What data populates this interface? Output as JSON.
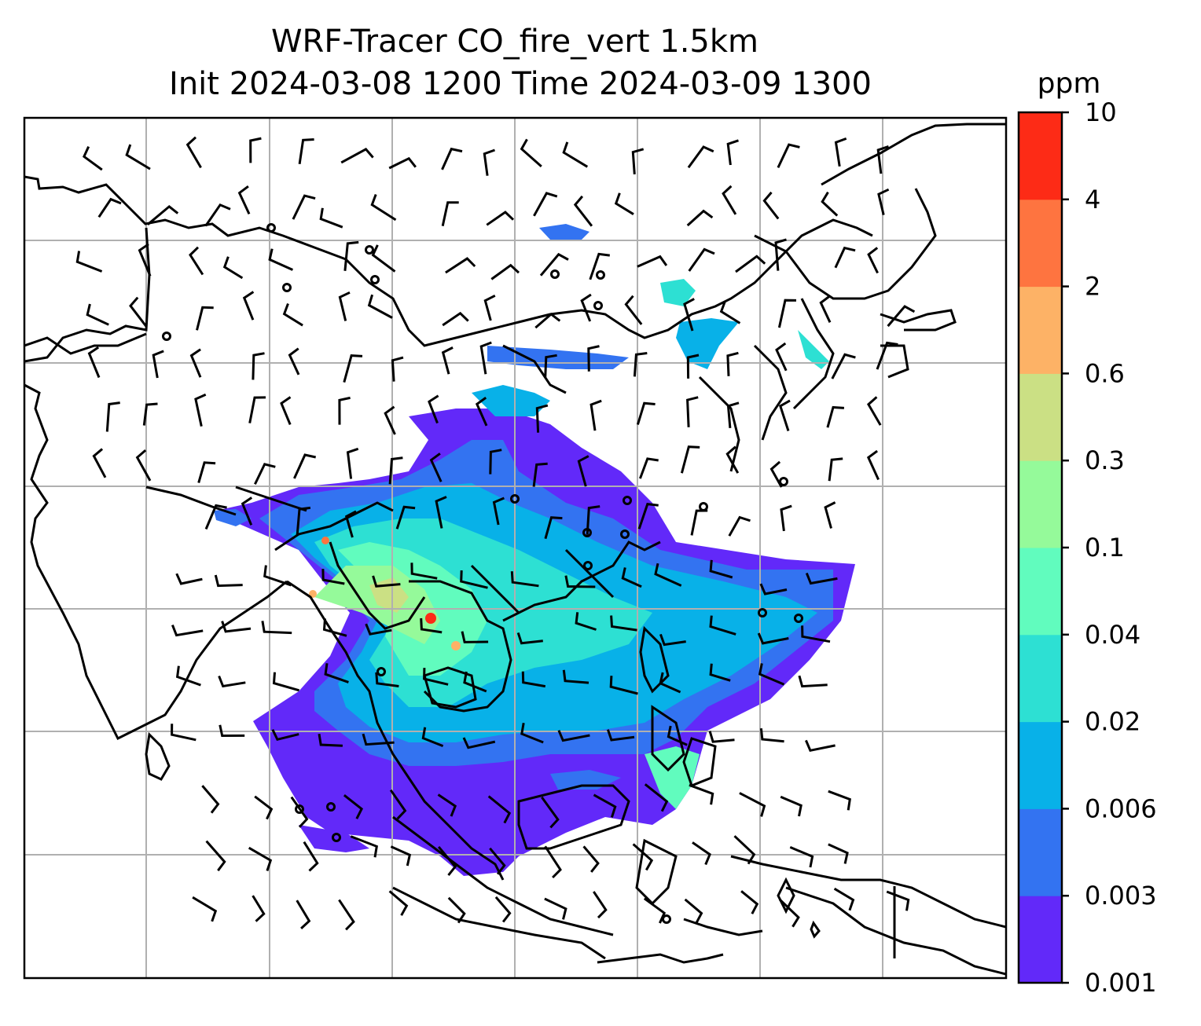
{
  "chart_data": {
    "type": "heatmap",
    "title_line1": "WRF-Tracer CO_fire_vert 1.5km",
    "title_line2": "Init 2024-03-08 1200 Time 2024-03-09 1300",
    "colorbar": {
      "unit": "ppm",
      "levels": [
        "0.001",
        "0.003",
        "0.006",
        "0.02",
        "0.04",
        "0.1",
        "0.3",
        "0.6",
        "2",
        "4",
        "10"
      ],
      "colors": [
        "#6229f9",
        "#3373f1",
        "#08b1e8",
        "#2de0d3",
        "#61fcbe",
        "#95fa9a",
        "#cbe084",
        "#fdb266",
        "#fe7440",
        "#fd2b16"
      ]
    },
    "grid": true,
    "overlays": [
      "coastlines",
      "country borders",
      "wind barbs"
    ]
  }
}
